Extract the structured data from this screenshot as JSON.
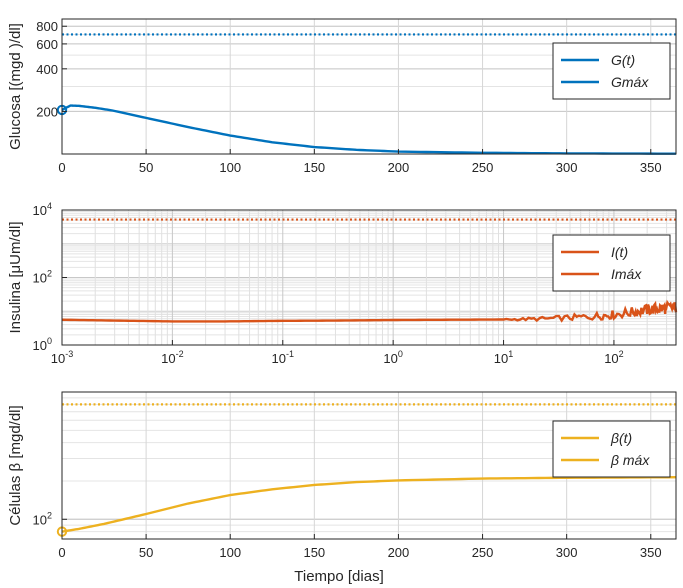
{
  "chart_data": [
    {
      "type": "line",
      "name": "glucose",
      "ylabel": "Glucosa [(mgd )/dl]",
      "xscale": "linear",
      "yscale": "log",
      "xlim": [
        0,
        365
      ],
      "ylim": [
        100,
        900
      ],
      "xticks": [
        0,
        50,
        100,
        150,
        200,
        250,
        300,
        350
      ],
      "xtick_labels": [
        "0",
        "50",
        "100",
        "150",
        "200",
        "250",
        "300",
        "350"
      ],
      "yticks": [
        200,
        400,
        600,
        800
      ],
      "ytick_labels": [
        "200",
        "400",
        "600",
        "800"
      ],
      "grid": true,
      "legend_position": "top-right",
      "series": [
        {
          "name": "G(t)",
          "color": "#0072BD",
          "style": "solid",
          "x": [
            0,
            5,
            10,
            20,
            30,
            50,
            75,
            100,
            125,
            150,
            175,
            200,
            250,
            300,
            365
          ],
          "y": [
            205,
            220,
            219,
            212,
            203,
            180,
            155,
            135,
            121,
            112,
            107,
            104,
            102,
            101,
            100.5
          ]
        },
        {
          "name": "Gmáx",
          "color": "#0072BD",
          "style": "dotted",
          "x": [
            0,
            365
          ],
          "y": [
            700,
            700
          ]
        }
      ],
      "initial_marker": {
        "x": 0,
        "y": 205,
        "color": "#0072BD"
      }
    },
    {
      "type": "line",
      "name": "insulin",
      "ylabel": "Insulina [μUm/dl]",
      "xscale": "log",
      "yscale": "log",
      "xlim": [
        0.001,
        365
      ],
      "ylim": [
        1,
        10000
      ],
      "xticks": [
        0.001,
        0.01,
        0.1,
        1,
        10,
        100
      ],
      "xtick_labels": [
        "10",
        "10",
        "10",
        "10",
        "10",
        "10"
      ],
      "xtick_exponents": [
        "-3",
        "-2",
        "-1",
        "0",
        "1",
        "2"
      ],
      "yticks": [
        1,
        100,
        10000
      ],
      "ytick_labels": [
        "10",
        "10",
        "10"
      ],
      "ytick_exponents": [
        "0",
        "2",
        "4"
      ],
      "grid": true,
      "legend_position": "center-right",
      "series": [
        {
          "name": "I(t)",
          "color": "#D95319",
          "style": "solid",
          "x": [
            0.001,
            0.003,
            0.01,
            0.03,
            0.1,
            0.3,
            1,
            3,
            10,
            20,
            40,
            70,
            100,
            150,
            200,
            250,
            300,
            365
          ],
          "y": [
            5.6,
            5.3,
            5.0,
            5.0,
            5.2,
            5.3,
            5.5,
            5.6,
            5.7,
            5.9,
            6.4,
            7.2,
            8.0,
            9.5,
            11,
            12,
            12.5,
            13
          ]
        },
        {
          "name": "Imáx",
          "color": "#D95319",
          "style": "dotted",
          "x": [
            0.001,
            365
          ],
          "y": [
            5200,
            5200
          ]
        }
      ]
    },
    {
      "type": "line",
      "name": "beta-cells",
      "ylabel": "Células β [mgd/dl]",
      "xlabel": "Tiempo [dias]",
      "xscale": "linear",
      "yscale": "log",
      "xlim": [
        0,
        365
      ],
      "ylim": [
        70,
        1000
      ],
      "xticks": [
        0,
        50,
        100,
        150,
        200,
        250,
        300,
        350
      ],
      "xtick_labels": [
        "0",
        "50",
        "100",
        "150",
        "200",
        "250",
        "300",
        "350"
      ],
      "yticks": [
        100
      ],
      "ytick_labels": [
        "10"
      ],
      "ytick_exponents": [
        "2"
      ],
      "grid": true,
      "legend_position": "top-right",
      "series": [
        {
          "name": "β(t)",
          "color": "#EDB120",
          "style": "solid",
          "x": [
            0,
            10,
            25,
            50,
            75,
            100,
            125,
            150,
            175,
            200,
            250,
            300,
            365
          ],
          "y": [
            80,
            84,
            92,
            110,
            133,
            155,
            172,
            186,
            196,
            202,
            209,
            212,
            214
          ]
        },
        {
          "name": "β máx",
          "color": "#EDB120",
          "style": "dotted",
          "x": [
            0,
            365
          ],
          "y": [
            800,
            800
          ]
        }
      ],
      "initial_marker": {
        "x": 0,
        "y": 80,
        "color": "#EDB120"
      }
    }
  ]
}
